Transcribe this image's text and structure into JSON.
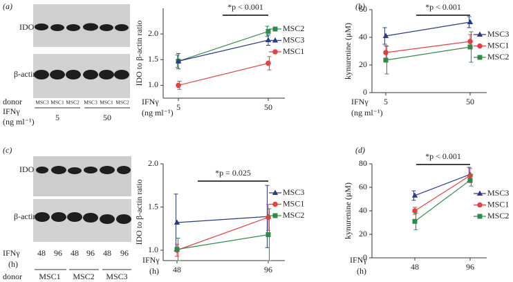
{
  "blots": [
    {
      "panel": "(a)",
      "rows": [
        "IDO",
        "β-actin"
      ],
      "donor": "donor",
      "lanes": [
        "MSC3",
        "MSC1",
        "MSC2",
        "MSC3",
        "MSC1",
        "MSC2"
      ],
      "condition": "IFNγ",
      "unit": "(ng ml⁻¹)",
      "doses": [
        "5",
        "50"
      ]
    },
    {
      "panel": "(c)",
      "rows": [
        "IDO",
        "β-actin"
      ],
      "donor": "donor",
      "condition": "IFNγ",
      "unit": "(h)",
      "doses": [
        "48",
        "96",
        "48",
        "96",
        "48",
        "96"
      ],
      "donor_groups": [
        "MSC1",
        "MSC2",
        "MSC3"
      ]
    }
  ],
  "chart_data": [
    {
      "type": "line",
      "ylabel": "IDO to β-actin ratio",
      "xlabel": "IFNγ",
      "xunit": "(ng ml⁻¹)",
      "annotation": "*p < 0.001",
      "categories": [
        "5",
        "50"
      ],
      "ylim": [
        0.75,
        2.5
      ],
      "yticks": [
        {
          "value": 1,
          "label": "1.0"
        },
        1.5,
        {
          "value": 2,
          "label": "2.0"
        }
      ],
      "series": [
        {
          "name": "MSC2",
          "color": "#2e8b4a",
          "marker": "square",
          "values": [
            1.47,
            2.05
          ],
          "errors": [
            0.12,
            0.1
          ]
        },
        {
          "name": "MSC3",
          "color": "#2b3a8c",
          "marker": "triangle",
          "values": [
            1.47,
            1.88
          ],
          "errors": [
            0.15,
            0.1
          ]
        },
        {
          "name": "MSC1",
          "color": "#e8403f",
          "marker": "circle",
          "values": [
            1.0,
            1.43
          ],
          "errors": [
            0.08,
            0.13
          ]
        }
      ]
    },
    {
      "type": "line",
      "panel": "(b)",
      "ylabel": "kynurenine (μM)",
      "xlabel": "IFNγ",
      "xunit": "(ng ml⁻¹)",
      "annotation": "*p < 0.001",
      "categories": [
        "5",
        "50"
      ],
      "ylim": [
        0,
        60
      ],
      "yticks": [
        0,
        20,
        40,
        60
      ],
      "series": [
        {
          "name": "MSC3",
          "color": "#2b3a8c",
          "marker": "triangle",
          "values": [
            41,
            51
          ],
          "errors": [
            6,
            4
          ]
        },
        {
          "name": "MSC1",
          "color": "#e8403f",
          "marker": "circle",
          "values": [
            29,
            37
          ],
          "errors": [
            5,
            5
          ]
        },
        {
          "name": "MSC2",
          "color": "#2e8b4a",
          "marker": "square",
          "values": [
            23.5,
            33
          ],
          "errors": [
            10,
            11
          ]
        }
      ]
    },
    {
      "type": "line",
      "ylabel": "IDO to β-actin ratio",
      "xlabel": "IFNγ",
      "xunit": "(h)",
      "annotation": "*p = 0.025",
      "categories": [
        "48",
        "96"
      ],
      "ylim": [
        0.88,
        2.0
      ],
      "yticks": [
        {
          "value": 1,
          "label": "1.0"
        },
        1.5,
        {
          "value": 2,
          "label": "2.0"
        }
      ],
      "series": [
        {
          "name": "MSC3",
          "color": "#2b3a8c",
          "marker": "triangle",
          "values": [
            1.32,
            1.39
          ],
          "errors": [
            0.33,
            0.36
          ]
        },
        {
          "name": "MSC1",
          "color": "#e8403f",
          "marker": "circle",
          "values": [
            1.0,
            1.38
          ],
          "errors": [
            0.07,
            0.15
          ]
        },
        {
          "name": "MSC2",
          "color": "#2e8b4a",
          "marker": "square",
          "values": [
            1.01,
            1.18
          ],
          "errors": [
            0.13,
            0.3
          ]
        }
      ]
    },
    {
      "type": "line",
      "panel": "(d)",
      "ylabel": "kynurenine (μM)",
      "xlabel": "IFNγ",
      "xunit": "(h)",
      "annotation": "*p < 0.001",
      "categories": [
        "48",
        "96"
      ],
      "ylim": [
        0,
        80
      ],
      "yticks": [
        0,
        20,
        40,
        60,
        80
      ],
      "series": [
        {
          "name": "MSC3",
          "color": "#2b3a8c",
          "marker": "triangle",
          "values": [
            53,
            71
          ],
          "errors": [
            4,
            6
          ]
        },
        {
          "name": "MSC1",
          "color": "#e8403f",
          "marker": "circle",
          "values": [
            40,
            70
          ],
          "errors": [
            3,
            6
          ]
        },
        {
          "name": "MSC2",
          "color": "#2e8b4a",
          "marker": "square",
          "values": [
            31,
            66
          ],
          "errors": [
            7,
            5
          ]
        }
      ]
    }
  ]
}
